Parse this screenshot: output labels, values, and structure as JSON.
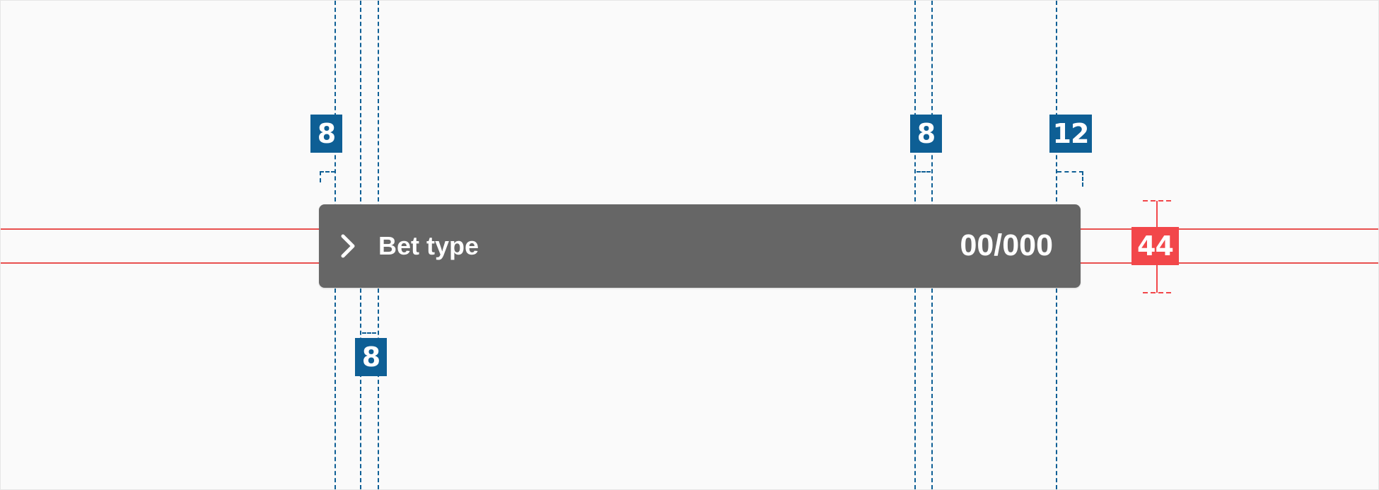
{
  "component": {
    "label": "Bet type",
    "value": "00/000",
    "icon": "chevron-right-icon"
  },
  "annotations": {
    "spacing_top_left": "8",
    "spacing_top_middle": "8",
    "spacing_top_right": "12",
    "spacing_bottom": "8",
    "height": "44"
  },
  "colors": {
    "bar_background": "#666666",
    "guide_blue": "#0e5f95",
    "guide_red": "#e8504f",
    "badge_red": "#f2474a",
    "canvas": "#fafafa"
  }
}
